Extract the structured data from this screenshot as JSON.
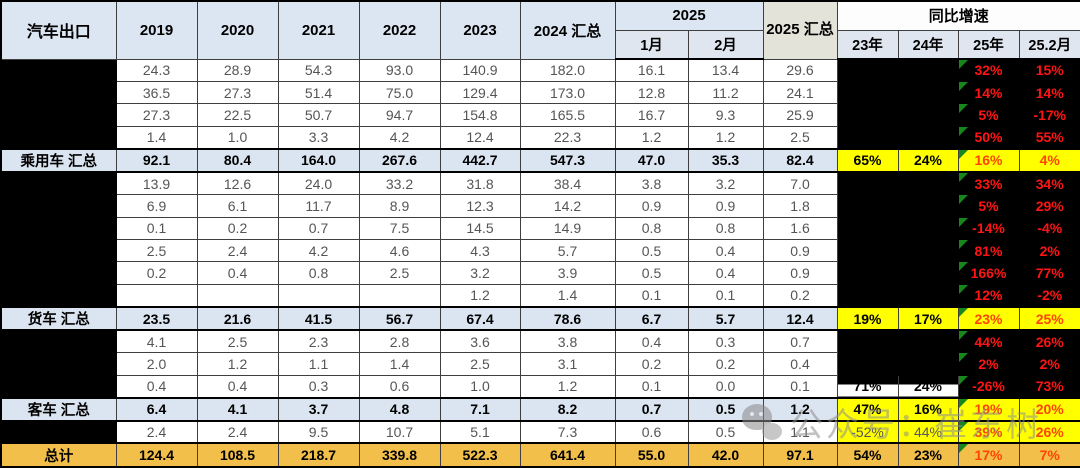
{
  "colors": {
    "header_blue": "#dce6f2",
    "summary_blue": "#dbe5f1",
    "total_gold": "#f2c04a",
    "highlight_yellow": "#ffff00",
    "red_on_black": "#ff1414",
    "red_accent": "#ff4500",
    "flag_green": "#17871b",
    "redaction_black": "#000000"
  },
  "watermark": {
    "text": "公众号：崔东树"
  },
  "chart_data": {
    "type": "table",
    "title": "汽车出口",
    "header": {
      "col0": "汽车出口",
      "years": [
        "2019",
        "2020",
        "2021",
        "2022",
        "2023"
      ],
      "sum2024": "2024 汇总",
      "y2025": "2025",
      "months2025": [
        "1月",
        "2月"
      ],
      "sum2025": "2025 汇总",
      "growth_title": "同比增速",
      "growth_cols": [
        "23年",
        "24年",
        "25年",
        "25.2月"
      ]
    },
    "rows": [
      {
        "kind": "data",
        "label": "",
        "label_redacted": true,
        "gs": "redacted",
        "values": [
          "24.3",
          "28.9",
          "54.3",
          "93.0",
          "140.9",
          "182.0",
          "16.1",
          "13.4",
          "29.6"
        ],
        "growth": [
          "",
          "",
          "32%",
          "15%"
        ]
      },
      {
        "kind": "data",
        "label": "",
        "label_redacted": true,
        "gs": "redacted",
        "values": [
          "36.5",
          "27.3",
          "51.4",
          "75.0",
          "129.4",
          "173.0",
          "12.8",
          "11.2",
          "24.1"
        ],
        "growth": [
          "",
          "",
          "14%",
          "14%"
        ]
      },
      {
        "kind": "data",
        "label": "",
        "label_redacted": true,
        "gs": "redacted",
        "values": [
          "27.3",
          "22.5",
          "50.7",
          "94.7",
          "154.8",
          "165.5",
          "16.7",
          "9.3",
          "25.9"
        ],
        "growth": [
          "",
          "",
          "5%",
          "-17%"
        ]
      },
      {
        "kind": "data",
        "label": "",
        "label_redacted": true,
        "gs": "redacted",
        "values": [
          "1.4",
          "1.0",
          "3.3",
          "4.2",
          "12.4",
          "22.3",
          "1.2",
          "1.2",
          "2.5"
        ],
        "growth": [
          "",
          "",
          "50%",
          "55%"
        ]
      },
      {
        "kind": "summary",
        "label": "乘用车 汇总",
        "label_redacted": false,
        "gs": "yellow",
        "values": [
          "92.1",
          "80.4",
          "164.0",
          "267.6",
          "442.7",
          "547.3",
          "47.0",
          "35.3",
          "82.4"
        ],
        "growth": [
          "65%",
          "24%",
          "16%",
          "4%"
        ]
      },
      {
        "kind": "data",
        "label": "",
        "label_redacted": true,
        "gs": "redacted",
        "values": [
          "13.9",
          "12.6",
          "24.0",
          "33.2",
          "31.8",
          "38.4",
          "3.8",
          "3.2",
          "7.0"
        ],
        "growth": [
          "",
          "",
          "33%",
          "34%"
        ]
      },
      {
        "kind": "data",
        "label": "",
        "label_redacted": true,
        "gs": "redacted",
        "values": [
          "6.9",
          "6.1",
          "11.7",
          "8.9",
          "12.3",
          "14.2",
          "0.9",
          "0.9",
          "1.8"
        ],
        "growth": [
          "",
          "",
          "5%",
          "29%"
        ]
      },
      {
        "kind": "data",
        "label": "",
        "label_redacted": true,
        "gs": "redacted",
        "values": [
          "0.1",
          "0.2",
          "0.7",
          "7.5",
          "14.5",
          "14.9",
          "0.8",
          "0.8",
          "1.6"
        ],
        "growth": [
          "",
          "",
          "-14%",
          "-4%"
        ]
      },
      {
        "kind": "data",
        "label": "",
        "label_redacted": true,
        "gs": "redacted",
        "values": [
          "2.5",
          "2.4",
          "4.2",
          "4.6",
          "4.3",
          "5.7",
          "0.5",
          "0.4",
          "0.9"
        ],
        "growth": [
          "",
          "",
          "81%",
          "2%"
        ]
      },
      {
        "kind": "data",
        "label": "",
        "label_redacted": true,
        "gs": "redacted",
        "values": [
          "0.2",
          "0.4",
          "0.8",
          "2.5",
          "3.2",
          "3.9",
          "0.5",
          "0.4",
          "0.9"
        ],
        "growth": [
          "",
          "",
          "166%",
          "77%"
        ]
      },
      {
        "kind": "data",
        "label": "",
        "label_redacted": true,
        "gs": "redacted",
        "values": [
          "",
          "",
          "",
          "",
          "1.2",
          "1.4",
          "0.1",
          "0.1",
          "0.2"
        ],
        "growth": [
          "",
          "",
          "12%",
          "-2%"
        ]
      },
      {
        "kind": "summary",
        "label": "货车 汇总",
        "label_redacted": false,
        "gs": "yellow",
        "values": [
          "23.5",
          "21.6",
          "41.5",
          "56.7",
          "67.4",
          "78.6",
          "6.7",
          "5.7",
          "12.4"
        ],
        "growth": [
          "19%",
          "17%",
          "23%",
          "25%"
        ]
      },
      {
        "kind": "data",
        "label": "",
        "label_redacted": true,
        "gs": "redacted",
        "values": [
          "4.1",
          "2.5",
          "2.3",
          "2.8",
          "3.6",
          "3.8",
          "0.4",
          "0.3",
          "0.7"
        ],
        "growth": [
          "",
          "",
          "44%",
          "26%"
        ]
      },
      {
        "kind": "data",
        "label": "",
        "label_redacted": true,
        "gs": "redacted",
        "values": [
          "2.0",
          "1.2",
          "1.1",
          "1.4",
          "2.5",
          "3.1",
          "0.2",
          "0.2",
          "0.4"
        ],
        "growth": [
          "",
          "",
          "2%",
          "2%"
        ]
      },
      {
        "kind": "data",
        "label": "",
        "label_redacted": true,
        "gs": "half",
        "values": [
          "0.4",
          "0.4",
          "0.3",
          "0.6",
          "1.0",
          "1.2",
          "0.1",
          "0.0",
          "0.1"
        ],
        "growth": [
          "71%",
          "24%",
          "-26%",
          "73%"
        ]
      },
      {
        "kind": "summary",
        "label": "客车 汇总",
        "label_redacted": false,
        "gs": "yellow",
        "values": [
          "6.4",
          "4.1",
          "3.7",
          "4.8",
          "7.1",
          "8.2",
          "0.7",
          "0.5",
          "1.2"
        ],
        "growth": [
          "47%",
          "16%",
          "19%",
          "20%"
        ]
      },
      {
        "kind": "data",
        "label": "",
        "label_redacted": true,
        "gs": "yellow",
        "values": [
          "2.4",
          "2.4",
          "9.5",
          "10.7",
          "5.1",
          "7.3",
          "0.6",
          "0.5",
          "1.1"
        ],
        "growth": [
          "-52%",
          "44%",
          "39%",
          "26%"
        ]
      },
      {
        "kind": "total",
        "label": "总计",
        "label_redacted": false,
        "gs": "gold",
        "values": [
          "124.4",
          "108.5",
          "218.7",
          "339.8",
          "522.3",
          "641.4",
          "55.0",
          "42.0",
          "97.1"
        ],
        "growth": [
          "54%",
          "23%",
          "17%",
          "7%"
        ]
      }
    ]
  }
}
